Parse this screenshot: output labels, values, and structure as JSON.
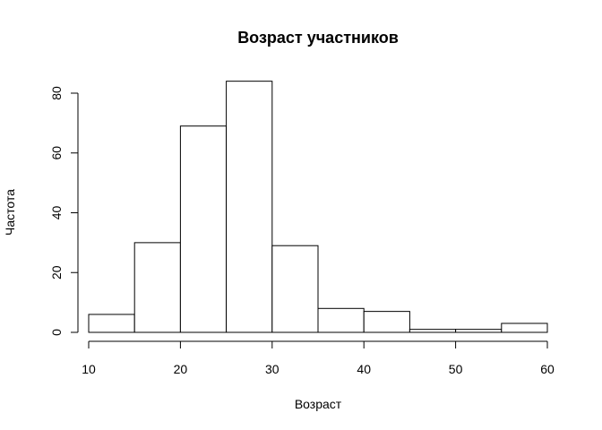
{
  "chart_data": {
    "type": "bar",
    "title": "Возраст участников",
    "xlabel": "Возраст",
    "ylabel": "Частота",
    "bins": [
      {
        "from": 10,
        "to": 15,
        "count": 6
      },
      {
        "from": 15,
        "to": 20,
        "count": 30
      },
      {
        "from": 20,
        "to": 25,
        "count": 69
      },
      {
        "from": 25,
        "to": 30,
        "count": 84
      },
      {
        "from": 30,
        "to": 35,
        "count": 29
      },
      {
        "from": 35,
        "to": 40,
        "count": 8
      },
      {
        "from": 40,
        "to": 45,
        "count": 7
      },
      {
        "from": 45,
        "to": 50,
        "count": 1
      },
      {
        "from": 50,
        "to": 55,
        "count": 1
      },
      {
        "from": 55,
        "to": 60,
        "count": 3
      }
    ],
    "xlim": [
      10,
      60
    ],
    "ylim": [
      0,
      84
    ],
    "x_ticks": [
      10,
      20,
      30,
      40,
      50,
      60
    ],
    "y_ticks": [
      0,
      20,
      40,
      60,
      80
    ],
    "grid": false,
    "legend": "none"
  }
}
